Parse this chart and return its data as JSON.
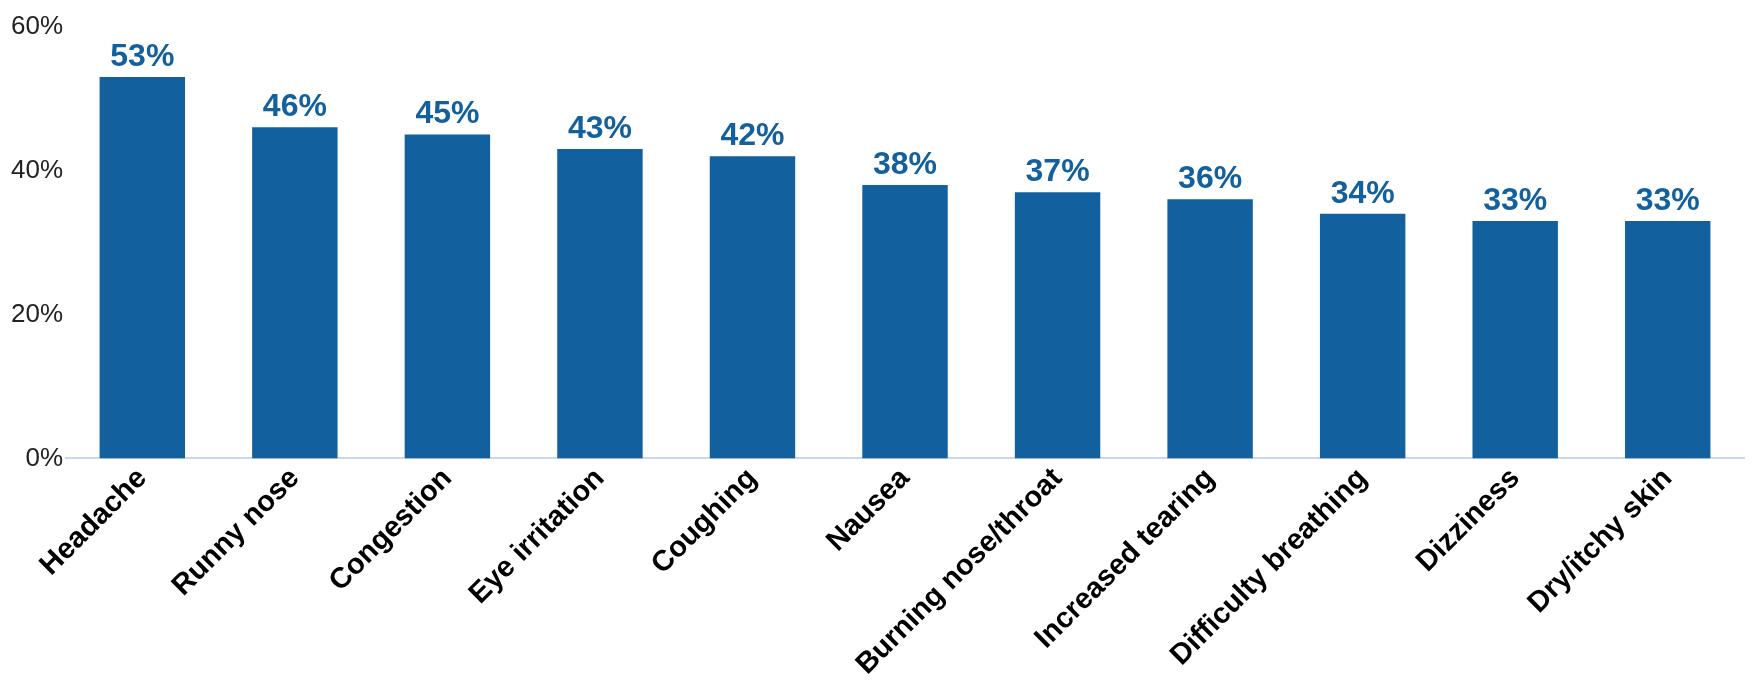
{
  "chart_data": {
    "type": "bar",
    "categories": [
      "Headache",
      "Runny nose",
      "Congestion",
      "Eye irritation",
      "Coughing",
      "Nausea",
      "Burning nose/throat",
      "Increased tearing",
      "Difficulty breathing",
      "Dizziness",
      "Dry/itchy skin"
    ],
    "values": [
      53,
      46,
      45,
      43,
      42,
      38,
      37,
      36,
      34,
      33,
      33
    ],
    "value_labels": [
      "53%",
      "46%",
      "45%",
      "43%",
      "42%",
      "38%",
      "37%",
      "36%",
      "34%",
      "33%",
      "33%"
    ],
    "color": "#12609e",
    "ylim": [
      0,
      60
    ],
    "yticks": [
      {
        "value": 0,
        "label": "0%"
      },
      {
        "value": 20,
        "label": "20%"
      },
      {
        "value": 40,
        "label": "40%"
      },
      {
        "value": 60,
        "label": "60%"
      }
    ],
    "grid": false,
    "legend": false
  }
}
